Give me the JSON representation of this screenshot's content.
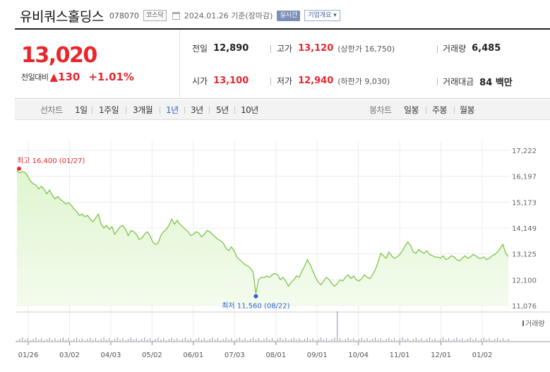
{
  "header": {
    "company": "유비쿼스홀딩스",
    "code": "078070",
    "market": "코스닥",
    "date_text": "2024.01.26 기준(장마감)",
    "realtime_label": "실시간",
    "company_info_label": "기업개요 ▾"
  },
  "price": {
    "current": "13,020",
    "change_label": "전일대비",
    "change_amount": "▲130",
    "change_percent": "+1.01%"
  },
  "stats": {
    "prev_close": {
      "label": "전일",
      "value": "12,890"
    },
    "high": {
      "label": "고가",
      "value": "13,120",
      "limit": "(상한가 16,750)"
    },
    "volume": {
      "label": "거래량",
      "value": "6,485"
    },
    "open": {
      "label": "시가",
      "value": "13,100"
    },
    "low": {
      "label": "저가",
      "value": "12,940",
      "limit": "(하한가 9,030)"
    },
    "amount": {
      "label": "거래대금",
      "value": "84 백만"
    }
  },
  "period_bar": {
    "line_title": "선차트",
    "periods": [
      "1일",
      "1주일",
      "3개월",
      "1년",
      "3년",
      "5년",
      "10년"
    ],
    "active_period": "1년",
    "candle_title": "봉차트",
    "candles": [
      "일봉",
      "주봉",
      "월봉"
    ]
  },
  "colors": {
    "accent_red": "#e8262c",
    "accent_blue": "#2a62c7",
    "line_green": "#7dc44a",
    "fill_green": "#dff5cf"
  },
  "chart_data": {
    "type": "area",
    "title": "",
    "xlabel": "",
    "ylabel": "",
    "x_tick_labels": [
      "01/26",
      "03/02",
      "04/03",
      "05/02",
      "06/01",
      "07/03",
      "08/01",
      "09/01",
      "10/04",
      "11/01",
      "12/01",
      "01/02"
    ],
    "y_ticks": [
      17222,
      16197,
      15173,
      14149,
      13125,
      12100,
      11076
    ],
    "ylim": [
      11076,
      17222
    ],
    "grid": true,
    "series": [
      {
        "values": [
          16400,
          16330,
          16380,
          16350,
          16200,
          16000,
          15900,
          15850,
          15700,
          15800,
          15680,
          15500,
          15650,
          15450,
          15300,
          15400,
          15280,
          15200,
          15100,
          15150,
          15050,
          14900,
          14800,
          14650,
          14700,
          14600,
          14650,
          14500,
          14400,
          14550,
          14700,
          14300,
          14150,
          14250,
          14100,
          14200,
          13900,
          14050,
          14200,
          14250,
          14100,
          13850,
          14050,
          14000,
          13900,
          13700,
          13750,
          13900,
          14000,
          13850,
          13600,
          13500,
          13550,
          13850,
          14000,
          14100,
          14250,
          14500,
          14300,
          14450,
          14300,
          14200,
          14100,
          14000,
          13850,
          13900,
          14000,
          13950,
          13800,
          13900,
          14050,
          14000,
          13900,
          13800,
          13700,
          13650,
          13550,
          13350,
          13250,
          13400,
          13250,
          13000,
          12900,
          12800,
          12700,
          12650,
          12550,
          12400,
          11560,
          12100,
          12200,
          12180,
          12250,
          12200,
          12300,
          12350,
          12300,
          12100,
          12200,
          12050,
          11850,
          12000,
          12100,
          12250,
          12200,
          12450,
          12650,
          12900,
          12700,
          12450,
          12200,
          12000,
          11900,
          12050,
          12200,
          12100,
          11950,
          11850,
          11950,
          12100,
          12050,
          12200,
          12300,
          12150,
          12250,
          12100,
          12050,
          12150,
          12300,
          12200,
          12150,
          12300,
          12500,
          12800,
          13150,
          13050,
          12950,
          13200,
          13050,
          12950,
          13000,
          13100,
          13250,
          13450,
          13600,
          13450,
          13200,
          13150,
          13300,
          13200,
          13150,
          13250,
          13100,
          13050,
          13000,
          13000,
          12950,
          13050,
          12900,
          12950,
          13050,
          13000,
          12900,
          12850,
          12950,
          13050,
          12950,
          13000,
          13100,
          13050,
          12950,
          12950,
          13000,
          12900,
          12950,
          13050,
          13100,
          13200,
          13350,
          13500,
          13150,
          13020
        ]
      }
    ],
    "volume_label": "거래량",
    "annotations": {
      "high": {
        "text": "최고 16,400 (01/27)",
        "value": 16400
      },
      "low": {
        "text": "최저 11,560 (08/22)",
        "value": 11560
      }
    }
  }
}
